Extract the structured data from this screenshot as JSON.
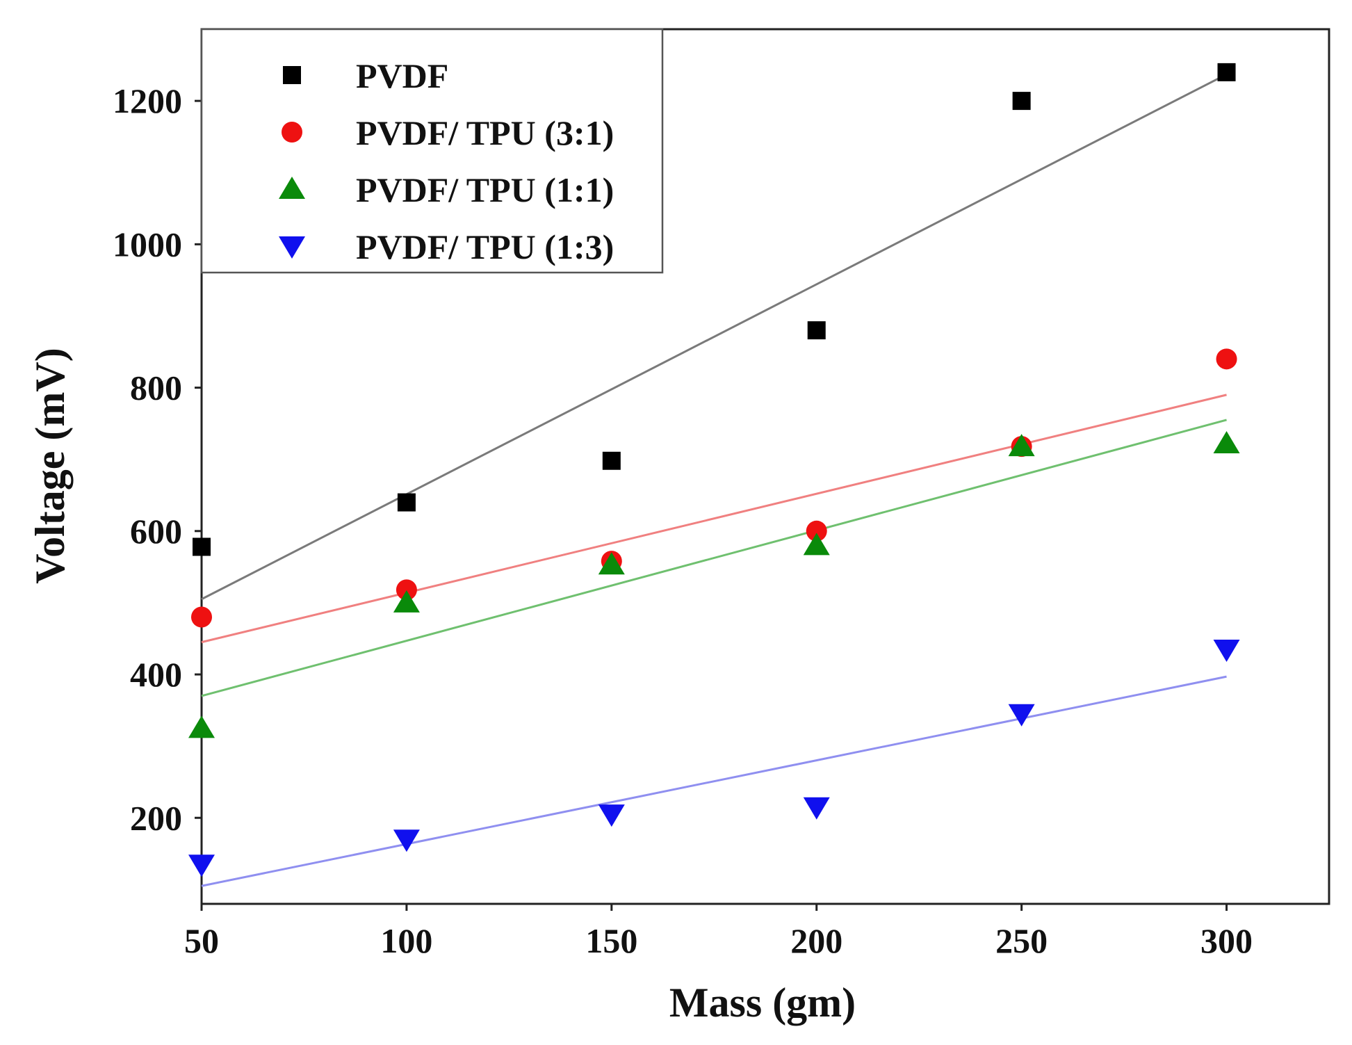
{
  "chart_data": {
    "type": "scatter",
    "title": "",
    "xlabel": "Mass (gm)",
    "ylabel": "Voltage (mV)",
    "xlim": [
      50,
      325
    ],
    "ylim": [
      80,
      1300
    ],
    "xticks": [
      50,
      100,
      150,
      200,
      250,
      300
    ],
    "yticks": [
      200,
      400,
      600,
      800,
      1000,
      1200
    ],
    "grid": false,
    "legend_position": "top-left",
    "x": [
      50,
      100,
      150,
      200,
      250,
      300
    ],
    "series": [
      {
        "name": "PVDF",
        "marker": "square",
        "color": "#000000",
        "fit_color": "#7a7a7a",
        "values": [
          578,
          640,
          698,
          880,
          1200,
          1240
        ],
        "fit": [
          505,
          1237
        ]
      },
      {
        "name": "PVDF/ TPU (3:1)",
        "marker": "circle",
        "color": "#ee1111",
        "fit_color": "#f08080",
        "values": [
          480,
          518,
          558,
          600,
          718,
          840
        ],
        "fit": [
          445,
          790
        ]
      },
      {
        "name": "PVDF/ TPU (1:1)",
        "marker": "triangle-up",
        "color": "#0a8a0a",
        "fit_color": "#6fc06f",
        "values": [
          325,
          500,
          553,
          580,
          718,
          722
        ],
        "fit": [
          370,
          755
        ]
      },
      {
        "name": "PVDF/ TPU (1:3)",
        "marker": "triangle-down",
        "color": "#1010ee",
        "fit_color": "#8f8ff0",
        "values": [
          135,
          170,
          205,
          215,
          345,
          435
        ],
        "fit": [
          105,
          397
        ]
      }
    ]
  }
}
